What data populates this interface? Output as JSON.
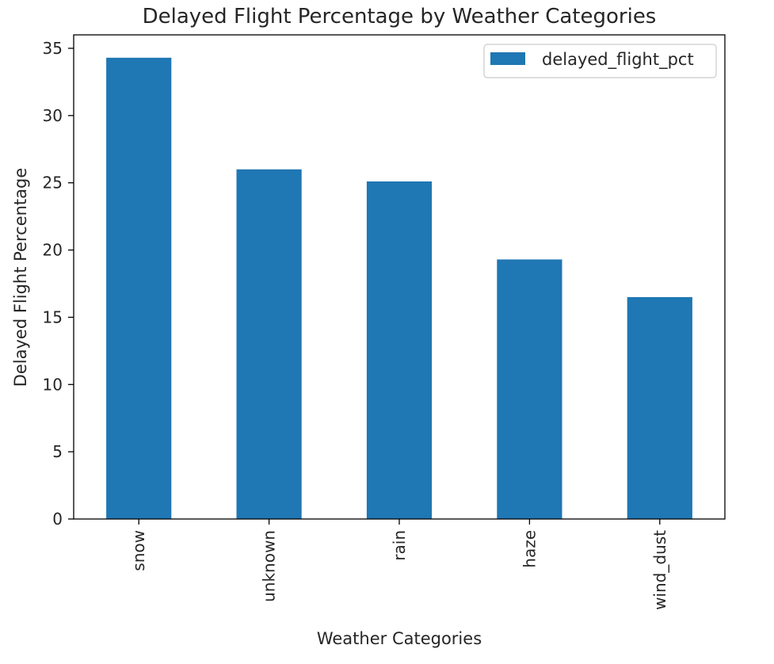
{
  "chart_data": {
    "type": "bar",
    "title": "Delayed Flight Percentage by Weather Categories",
    "xlabel": "Weather Categories",
    "ylabel": "Delayed Flight Percentage",
    "categories": [
      "snow",
      "unknown",
      "rain",
      "haze",
      "wind_dust"
    ],
    "series": [
      {
        "name": "delayed_flight_pct",
        "values": [
          34.3,
          26.0,
          25.1,
          19.3,
          16.5
        ],
        "color": "#1f77b4"
      }
    ],
    "ylim": [
      0,
      36
    ],
    "yticks": [
      0,
      5,
      10,
      15,
      20,
      25,
      30,
      35
    ],
    "grid": false,
    "legend_position": "top-right",
    "tick_label_rotation": "vertical"
  }
}
